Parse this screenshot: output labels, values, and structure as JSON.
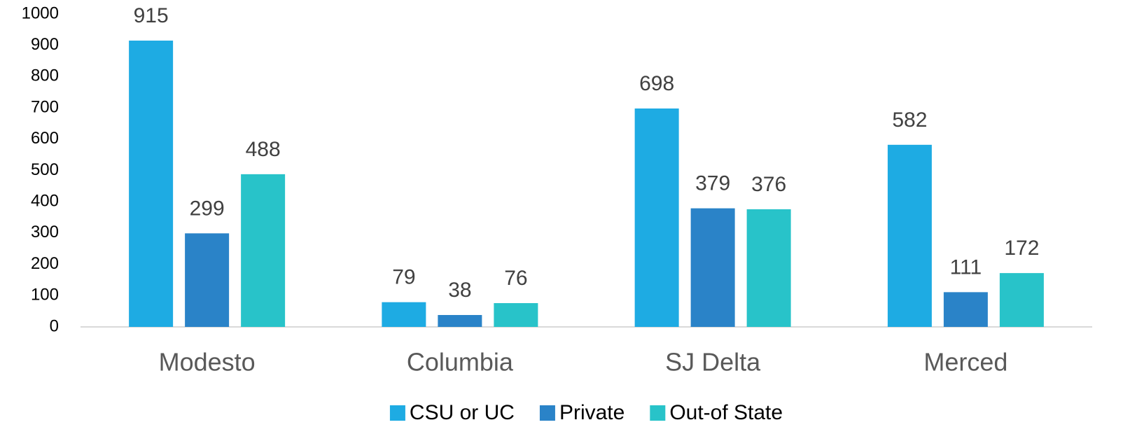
{
  "chart_data": {
    "type": "bar",
    "categories": [
      "Modesto",
      "Columbia",
      "SJ Delta",
      "Merced"
    ],
    "series": [
      {
        "name": "CSU or UC",
        "color": "#1eabe3",
        "values": [
          915,
          79,
          698,
          582
        ]
      },
      {
        "name": "Private",
        "color": "#2a83c8",
        "values": [
          299,
          38,
          379,
          111
        ]
      },
      {
        "name": "Out-of State",
        "color": "#28c3c9",
        "values": [
          488,
          76,
          376,
          172
        ]
      }
    ],
    "ylim": [
      0,
      1000
    ],
    "yticks": [
      0,
      100,
      200,
      300,
      400,
      500,
      600,
      700,
      800,
      900,
      1000
    ],
    "grid": false,
    "legend": "bottom"
  }
}
